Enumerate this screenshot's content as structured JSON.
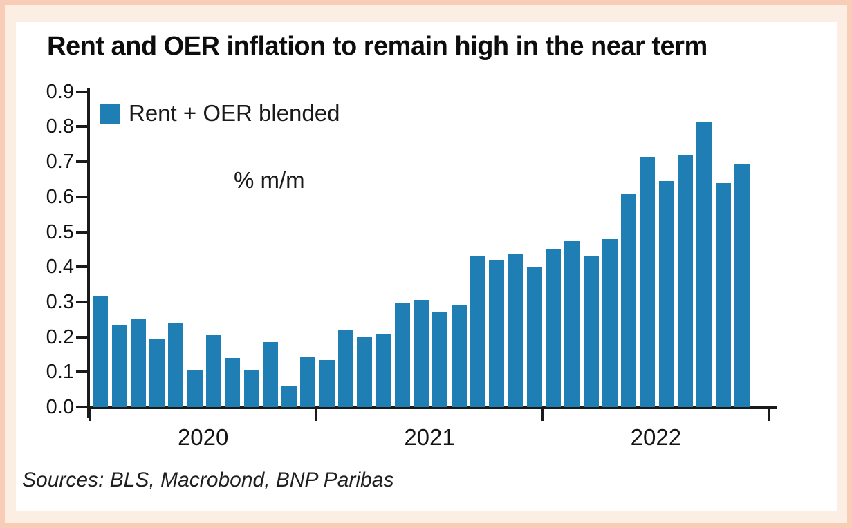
{
  "page": {
    "background_color": "#fdeee3",
    "frame_color": "#f8ccb6",
    "card_color": "#ffffff"
  },
  "chart_data": {
    "type": "bar",
    "title": "Rent and OER inflation to remain high in the near term",
    "legend": [
      {
        "label": "Rent + OER blended",
        "color": "#1f7fb4"
      }
    ],
    "legend_position": "top-left",
    "annotation": "% m/m",
    "bar_color": "#1f7fb4",
    "axis_color": "#1a1a1a",
    "grid": false,
    "ylim": [
      0.0,
      0.9
    ],
    "y_tick_labels": [
      "0.0",
      "0.1",
      "0.2",
      "0.3",
      "0.4",
      "0.5",
      "0.6",
      "0.7",
      "0.8",
      "0.9"
    ],
    "x_tick_labels": [
      "2020",
      "2021",
      "2022"
    ],
    "categories": [
      "Jan 2020",
      "Feb 2020",
      "Mar 2020",
      "Apr 2020",
      "May 2020",
      "Jun 2020",
      "Jul 2020",
      "Aug 2020",
      "Sep 2020",
      "Oct 2020",
      "Nov 2020",
      "Dec 2020",
      "Jan 2021",
      "Feb 2021",
      "Mar 2021",
      "Apr 2021",
      "May 2021",
      "Jun 2021",
      "Jul 2021",
      "Aug 2021",
      "Sep 2021",
      "Oct 2021",
      "Nov 2021",
      "Dec 2021",
      "Jan 2022",
      "Feb 2022",
      "Mar 2022",
      "Apr 2022",
      "May 2022",
      "Jun 2022",
      "Jul 2022",
      "Aug 2022",
      "Sep 2022",
      "Oct 2022",
      "Nov 2022"
    ],
    "values": [
      0.315,
      0.235,
      0.25,
      0.195,
      0.24,
      0.105,
      0.205,
      0.14,
      0.105,
      0.185,
      0.06,
      0.145,
      0.135,
      0.22,
      0.2,
      0.21,
      0.295,
      0.305,
      0.27,
      0.29,
      0.43,
      0.42,
      0.435,
      0.4,
      0.45,
      0.475,
      0.43,
      0.48,
      0.61,
      0.715,
      0.645,
      0.72,
      0.815,
      0.64,
      0.695
    ]
  },
  "footer": {
    "sources": "Sources: BLS, Macrobond, BNP Paribas"
  }
}
